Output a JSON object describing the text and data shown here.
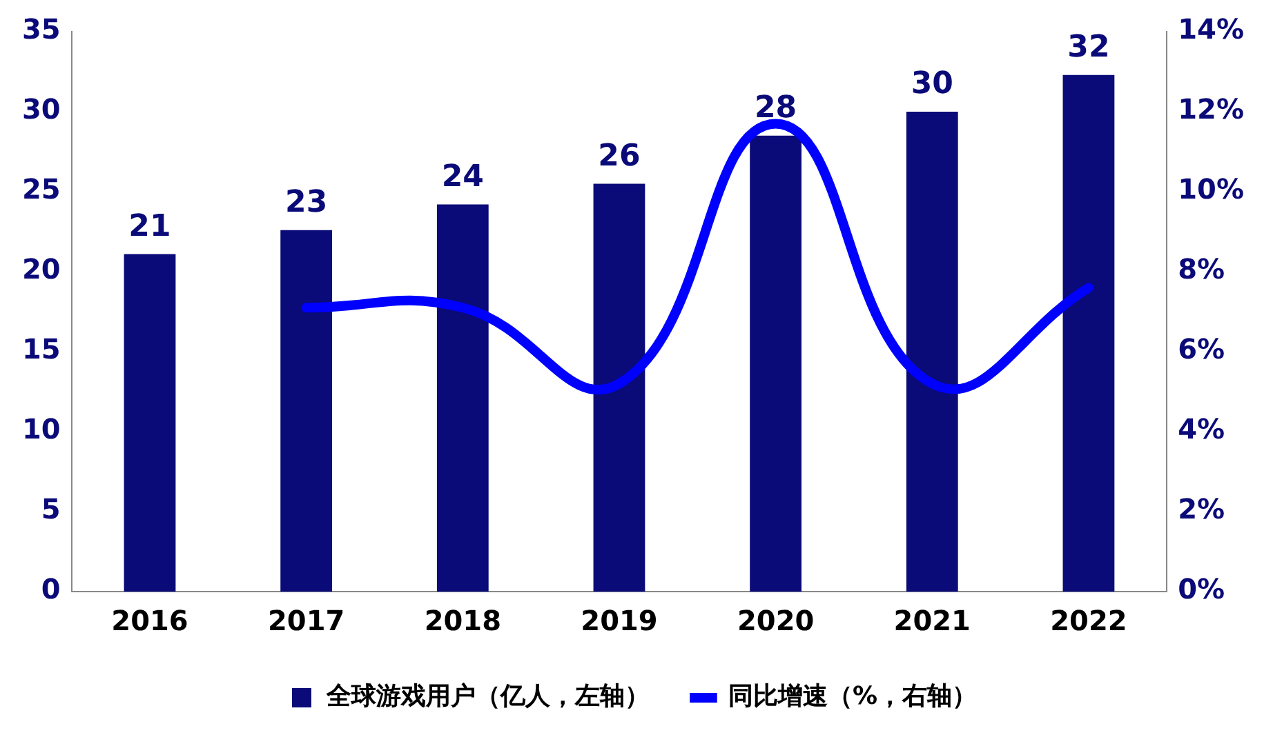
{
  "chart_data": {
    "type": "bar",
    "categories": [
      "2016",
      "2017",
      "2018",
      "2019",
      "2020",
      "2021",
      "2022"
    ],
    "series": [
      {
        "name": "全球游戏用户（亿人，左轴）",
        "color": "#0a0a78",
        "values": [
          21.1,
          22.6,
          24.2,
          25.5,
          28.5,
          30.0,
          32.3
        ],
        "value_labels": [
          "21",
          "23",
          "24",
          "26",
          "28",
          "30",
          "32"
        ]
      },
      {
        "name": "同比增速（%，右轴）",
        "type": "line",
        "axis": "y2",
        "color": "#0000ff",
        "values": [
          null,
          7.1,
          7.1,
          5.2,
          11.7,
          5.2,
          7.6
        ]
      }
    ],
    "ylim": [
      0,
      35
    ],
    "yticks": [
      0,
      5,
      10,
      15,
      20,
      25,
      30,
      35
    ],
    "y2lim": [
      0,
      14
    ],
    "y2ticks": [
      {
        "value": 0,
        "label": "0%"
      },
      {
        "value": 2,
        "label": "2%"
      },
      {
        "value": 4,
        "label": "4%"
      },
      {
        "value": 6,
        "label": "6%"
      },
      {
        "value": 8,
        "label": "8%"
      },
      {
        "value": 10,
        "label": "10%"
      },
      {
        "value": 12,
        "label": "12%"
      },
      {
        "value": 14,
        "label": "14%"
      }
    ],
    "grid": false,
    "legend": "bottom",
    "marker": "none",
    "line_style": "solid"
  }
}
